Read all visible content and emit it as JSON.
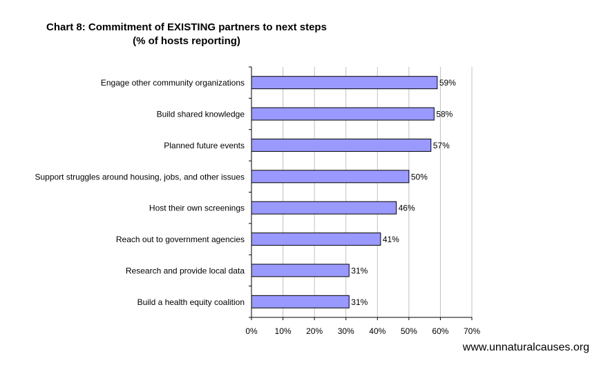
{
  "chart_data": {
    "type": "bar",
    "orientation": "horizontal",
    "title": "Chart 8: Commitment of EXISTING partners to next steps",
    "subtitle": "(% of hosts reporting)",
    "categories": [
      "Engage other community organizations",
      "Build shared knowledge",
      "Planned future events",
      "Support struggles around housing, jobs, and other issues",
      "Host their own screenings",
      "Reach out to government agencies",
      "Research and provide local data",
      "Build a health equity coalition"
    ],
    "values": [
      59,
      58,
      57,
      50,
      46,
      41,
      31,
      31
    ],
    "data_labels": [
      "59%",
      "58%",
      "57%",
      "50%",
      "46%",
      "41%",
      "31%",
      "31%"
    ],
    "x_ticks": [
      "0%",
      "10%",
      "20%",
      "30%",
      "40%",
      "50%",
      "60%",
      "70%"
    ],
    "xlim": [
      0,
      70
    ],
    "xlabel": "",
    "ylabel": "",
    "grid": true,
    "legend": "none",
    "bar_color": "#9999FF"
  },
  "footer": {
    "url": "www.unnaturalcauses.org"
  }
}
